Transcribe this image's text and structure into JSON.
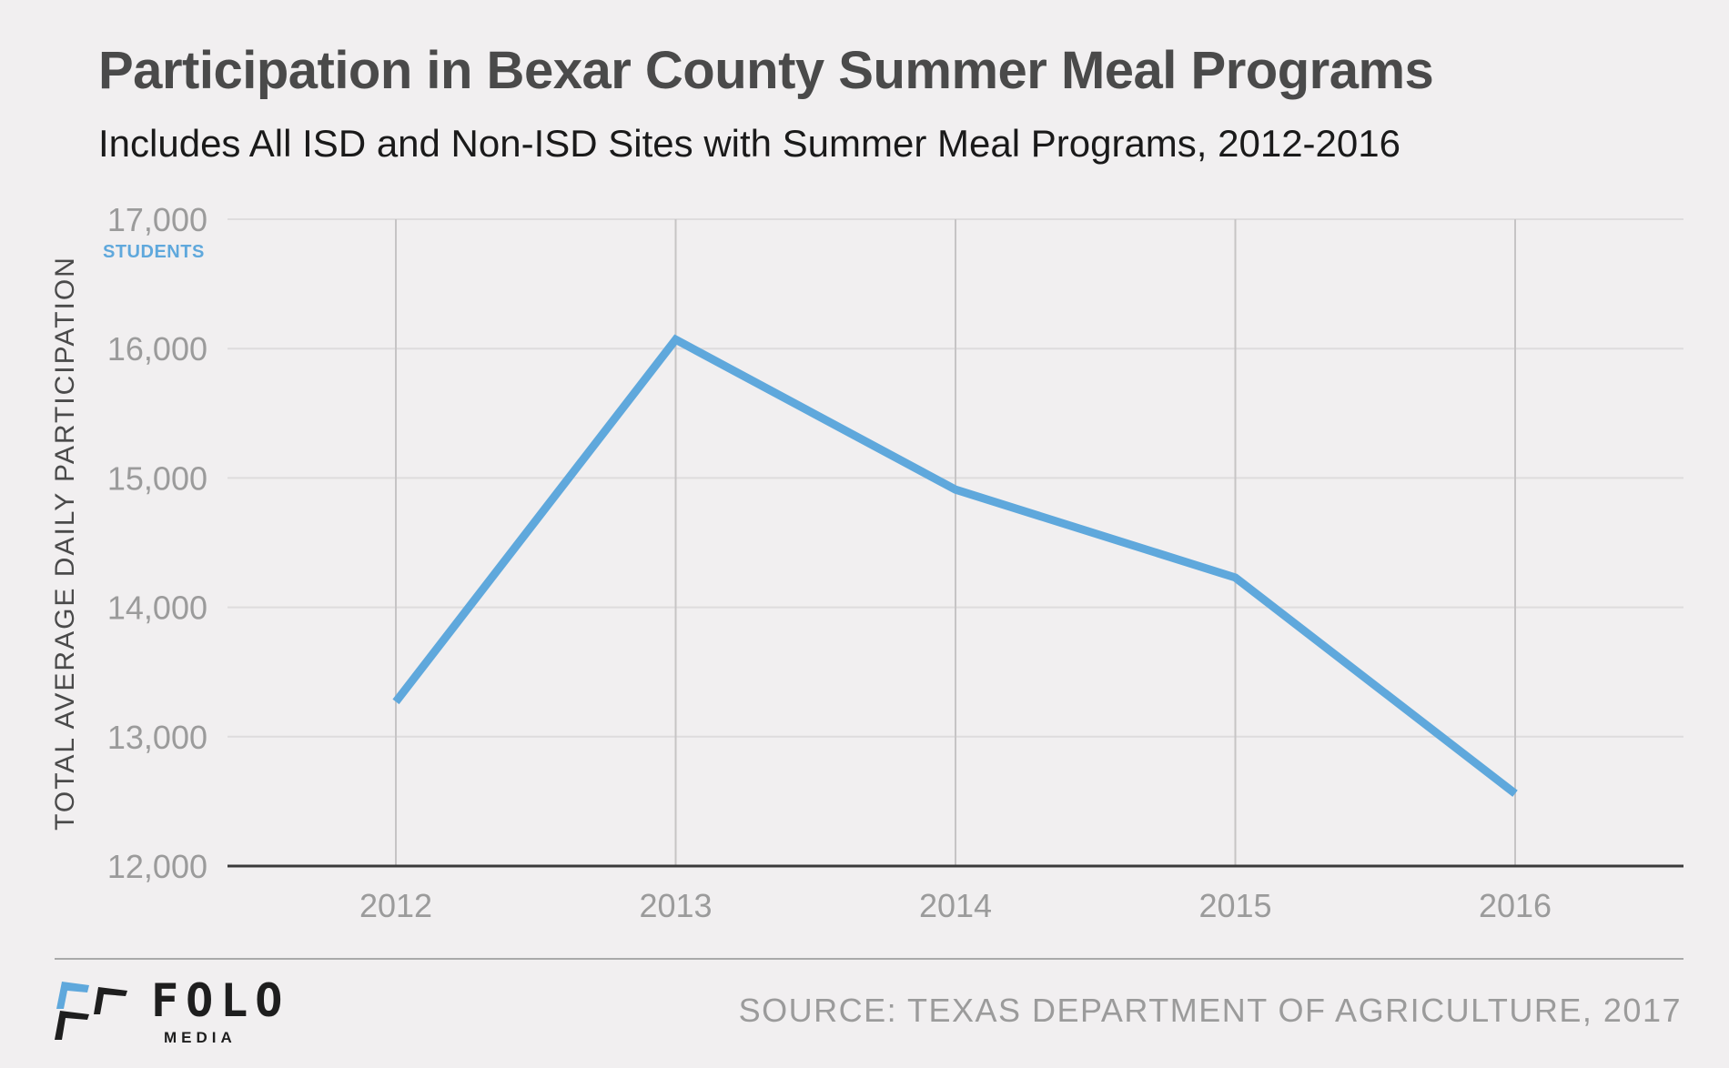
{
  "header": {
    "title": "Participation in Bexar County Summer Meal Programs",
    "subtitle": "Includes All ISD and Non-ISD Sites with Summer Meal Programs, 2012-2016"
  },
  "chart_data": {
    "type": "line",
    "title": "Participation in Bexar County Summer Meal Programs",
    "subtitle": "Includes All ISD and Non-ISD Sites with Summer Meal Programs, 2012-2016",
    "xlabel": "",
    "ylabel": "TOTAL AVERAGE DAILY PARTICIPATION",
    "y_unit_label": "STUDENTS",
    "categories": [
      "2012",
      "2013",
      "2014",
      "2015",
      "2016"
    ],
    "series": [
      {
        "name": "Total average daily participation",
        "color": "#5fa8dc",
        "values": [
          13270,
          16070,
          14910,
          14230,
          12560
        ]
      }
    ],
    "ylim": [
      12000,
      17000
    ],
    "yticks": [
      12000,
      13000,
      14000,
      15000,
      16000,
      17000
    ],
    "ytick_labels": [
      "12,000",
      "13,000",
      "14,000",
      "15,000",
      "16,000",
      "17,000"
    ],
    "grid": true,
    "legend": "none"
  },
  "footer": {
    "source": "SOURCE: TEXAS DEPARTMENT OF AGRICULTURE, 2017",
    "logo_word": "FOLO",
    "logo_sub": "MEDIA",
    "logo_accent_color": "#5fa8dc"
  }
}
